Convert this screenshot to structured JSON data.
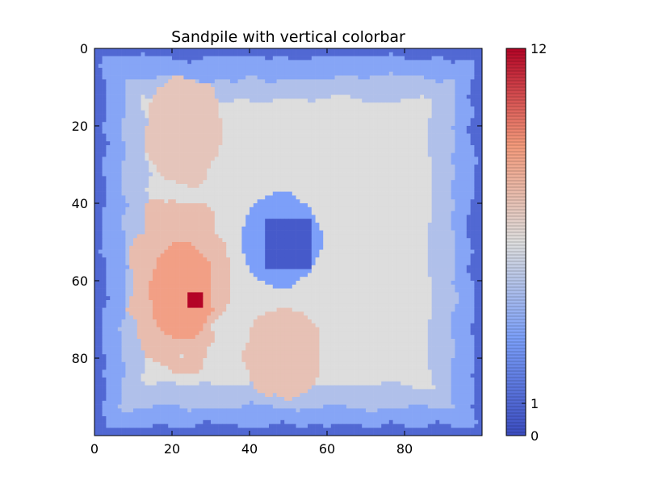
{
  "chart_data": {
    "type": "heatmap",
    "title": "Sandpile with vertical colorbar",
    "xlabel": "",
    "ylabel": "",
    "grid_size": 100,
    "xlim": [
      0,
      100
    ],
    "ylim": [
      100,
      0
    ],
    "x_ticks": [
      0,
      20,
      40,
      60,
      80
    ],
    "y_ticks": [
      0,
      20,
      40,
      60,
      80
    ],
    "colormap": "coolwarm",
    "colorbar": {
      "placement": "right",
      "range": [
        0,
        12
      ],
      "ticks": [
        0,
        1,
        12
      ],
      "colors": {
        "low": "#3b4cc0",
        "mid": "#dddddd",
        "high": "#b40426"
      }
    },
    "regions": [
      {
        "label": "border",
        "value": 1.0
      },
      {
        "label": "outer-ring",
        "value": 3.3
      },
      {
        "label": "inner-ring",
        "value": 4.6
      },
      {
        "label": "plateau",
        "value": 6.0
      },
      {
        "label": "upper-left-ridge",
        "x": [
          12,
          33
        ],
        "y": [
          6,
          35
        ],
        "value": 7.0
      },
      {
        "label": "left-ridge",
        "x": [
          8,
          34
        ],
        "y": [
          37,
          82
        ],
        "value": 7.4
      },
      {
        "label": "left-peak",
        "x": [
          14,
          30
        ],
        "y": [
          50,
          76
        ],
        "value": 8.6
      },
      {
        "label": "max-point",
        "x": [
          24,
          27
        ],
        "y": [
          63,
          66
        ],
        "value": 12.0
      },
      {
        "label": "lower-middle-ridge",
        "x": [
          38,
          58
        ],
        "y": [
          67,
          90
        ],
        "value": 7.2
      },
      {
        "label": "central-hole",
        "x": [
          44,
          55
        ],
        "y": [
          44,
          56
        ],
        "value": 0.5
      },
      {
        "label": "hole-halo",
        "x": [
          37,
          59
        ],
        "y": [
          36,
          62
        ],
        "value": 3.0
      }
    ]
  }
}
